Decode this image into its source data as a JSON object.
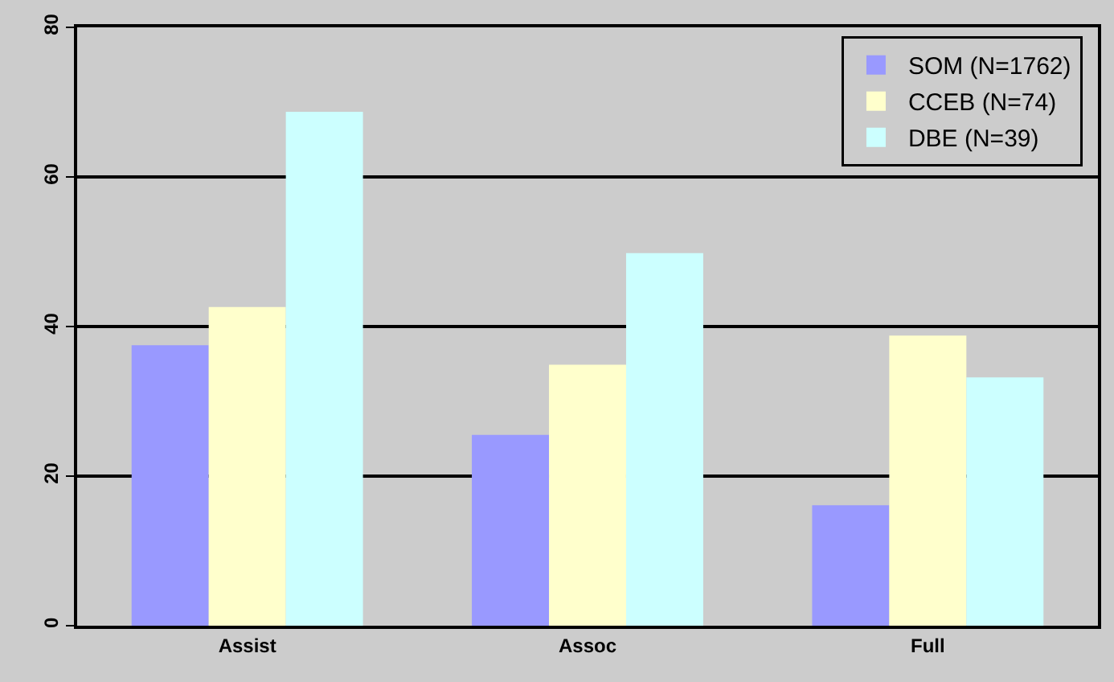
{
  "chart_data": {
    "type": "bar",
    "categories": [
      "Assist",
      "Assoc",
      "Full"
    ],
    "series": [
      {
        "name": "SOM (N=1762)",
        "color": "#9999ff",
        "values": [
          37.5,
          25.5,
          16.1
        ]
      },
      {
        "name": "CCEB (N=74)",
        "color": "#ffffcc",
        "values": [
          42.6,
          34.9,
          38.8
        ]
      },
      {
        "name": "DBE (N=39)",
        "color": "#ccffff",
        "values": [
          68.7,
          49.8,
          33.2
        ]
      }
    ],
    "ylim": [
      0,
      80
    ],
    "yticks": [
      0,
      20,
      40,
      60,
      80
    ],
    "grid": "y",
    "legend": "top right"
  }
}
